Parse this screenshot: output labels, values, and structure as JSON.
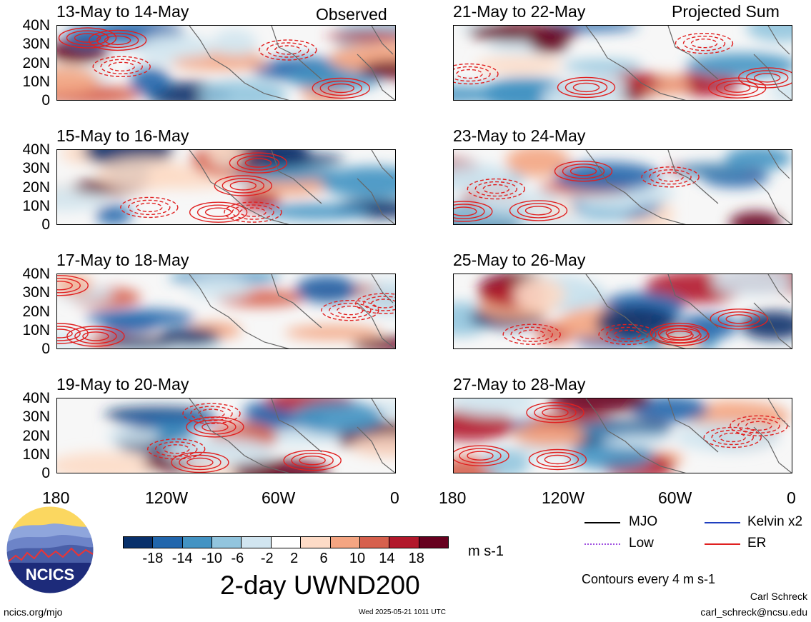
{
  "column_tags": {
    "left": "Observed",
    "right": "Projected Sum"
  },
  "panels": [
    {
      "title": "13-May to 14-May",
      "column": "left",
      "row": 0
    },
    {
      "title": "15-May to 16-May",
      "column": "left",
      "row": 1
    },
    {
      "title": "17-May to 18-May",
      "column": "left",
      "row": 2
    },
    {
      "title": "19-May to 20-May",
      "column": "left",
      "row": 3
    },
    {
      "title": "21-May to 22-May",
      "column": "right",
      "row": 0
    },
    {
      "title": "23-May to 24-May",
      "column": "right",
      "row": 1
    },
    {
      "title": "25-May to 26-May",
      "column": "right",
      "row": 2
    },
    {
      "title": "27-May to 28-May",
      "column": "right",
      "row": 3
    }
  ],
  "lat_labels": [
    "40N",
    "30N",
    "20N",
    "10N",
    "0"
  ],
  "lon_labels": [
    "180",
    "120W",
    "60W",
    "0"
  ],
  "colorbar": {
    "colors": [
      "#08306b",
      "#2166ac",
      "#4393c3",
      "#92c5de",
      "#d1e5f0",
      "#ffffff",
      "#fddbc7",
      "#f4a582",
      "#d6604d",
      "#b2182b",
      "#67001f"
    ],
    "ticks": [
      "-18",
      "-14",
      "-10",
      "-6",
      "-2",
      "2",
      "6",
      "10",
      "14",
      "18"
    ],
    "units": "m s-1",
    "title": "2-day UWND200"
  },
  "legend": {
    "items": [
      {
        "label": "MJO",
        "color": "#000000"
      },
      {
        "label": "Kelvin x2",
        "color": "#1f3fbf"
      },
      {
        "label": "Low",
        "color": "#a050e0"
      },
      {
        "label": "ER",
        "color": "#e02020"
      }
    ],
    "contour_note": "Contours every 4 m s-1"
  },
  "footer": {
    "logo_text": "NCICS",
    "url": "ncics.org/mjo",
    "timestamp": "Wed 2025-05-21 1011 UTC",
    "author": "Carl Schreck",
    "email": "carl_schreck@ncsu.edu"
  }
}
